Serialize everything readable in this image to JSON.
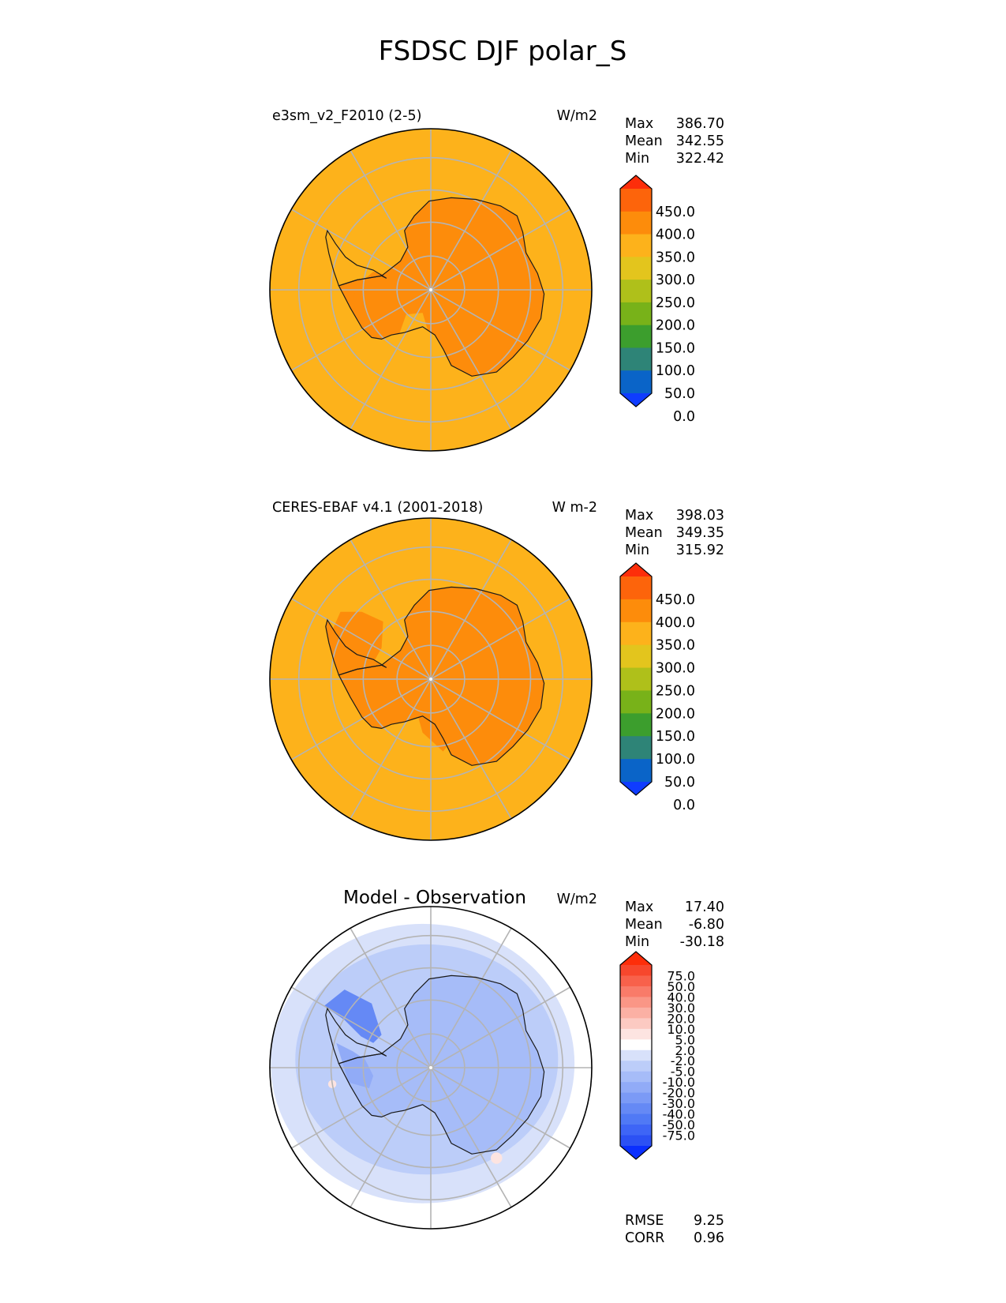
{
  "figure": {
    "title": "FSDSC DJF polar_S"
  },
  "colors": {
    "background": "#ffffff",
    "grid": "#b4b4b4",
    "coast": "#1a1a1a",
    "abs_levels": [
      "#0f3cff",
      "#0a64c8",
      "#2e8477",
      "#3c9e2d",
      "#78b219",
      "#afc01a",
      "#e3c51d",
      "#fdb21b",
      "#fd8c0b",
      "#fd640b",
      "#fd2e0a"
    ],
    "diff_levels": [
      "#0a2fff",
      "#2c51f4",
      "#3e65f6",
      "#5079f5",
      "#6589f5",
      "#7b9af6",
      "#91abf7",
      "#a6bcf8",
      "#bccdf9",
      "#d8e1fa",
      "#ffffff",
      "#fde4e1",
      "#fccac2",
      "#fbb0a4",
      "#fa9686",
      "#f97b69",
      "#f8614b",
      "#f7472d",
      "#fd2e0a"
    ]
  },
  "panels": [
    {
      "id": "test",
      "title_left": "e3sm_v2_F2010 (2-5)",
      "units": "W/m2",
      "stats": [
        {
          "label": "Max",
          "value": "386.70"
        },
        {
          "label": "Mean",
          "value": "342.55"
        },
        {
          "label": "Min",
          "value": "322.42"
        }
      ],
      "colorbar_labels": [
        "450.0",
        "400.0",
        "350.0",
        "300.0",
        "250.0",
        "200.0",
        "150.0",
        "100.0",
        "50.0",
        "0.0"
      ]
    },
    {
      "id": "ref",
      "title_left": "CERES-EBAF v4.1 (2001-2018)",
      "units": "W m-2",
      "stats": [
        {
          "label": "Max",
          "value": "398.03"
        },
        {
          "label": "Mean",
          "value": "349.35"
        },
        {
          "label": "Min",
          "value": "315.92"
        }
      ],
      "colorbar_labels": [
        "450.0",
        "400.0",
        "350.0",
        "300.0",
        "250.0",
        "200.0",
        "150.0",
        "100.0",
        "50.0",
        "0.0"
      ]
    },
    {
      "id": "diff",
      "title_center": "Model - Observation",
      "units": "W/m2",
      "stats": [
        {
          "label": "Max",
          "value": "17.40"
        },
        {
          "label": "Mean",
          "value": "-6.80"
        },
        {
          "label": "Min",
          "value": "-30.18"
        }
      ],
      "extra_stats": [
        {
          "label": "RMSE",
          "value": "9.25"
        },
        {
          "label": "CORR",
          "value": "0.96"
        }
      ],
      "colorbar_labels": [
        "75.0",
        "50.0",
        "40.0",
        "30.0",
        "20.0",
        "10.0",
        "5.0",
        "2.0",
        "-2.0",
        "-5.0",
        "-10.0",
        "-20.0",
        "-30.0",
        "-40.0",
        "-50.0",
        "-75.0"
      ]
    }
  ],
  "chart_data": [
    {
      "type": "heatmap",
      "projection": "south polar stereographic",
      "title": "e3sm_v2_F2010 (2-5)",
      "units": "W/m2",
      "levels": [
        0,
        50,
        100,
        150,
        200,
        250,
        300,
        350,
        400,
        450
      ],
      "colorbar_extend": "both",
      "stats": {
        "max": 386.7,
        "mean": 342.55,
        "min": 322.42
      },
      "fields": {
        "ocean": "300-350",
        "antarctica_interior": "350-400",
        "ross_weddell_ice_shelves": "300-350"
      }
    },
    {
      "type": "heatmap",
      "projection": "south polar stereographic",
      "title": "CERES-EBAF v4.1 (2001-2018)",
      "units": "W m-2",
      "levels": [
        0,
        50,
        100,
        150,
        200,
        250,
        300,
        350,
        400,
        450
      ],
      "colorbar_extend": "both",
      "stats": {
        "max": 398.03,
        "mean": 349.35,
        "min": 315.92
      },
      "fields": {
        "ocean": "300-350",
        "antarctica_interior": "350-400"
      }
    },
    {
      "type": "heatmap",
      "projection": "south polar stereographic",
      "title": "Model - Observation",
      "units": "W/m2",
      "levels": [
        -75,
        -50,
        -40,
        -30,
        -20,
        -10,
        -5,
        -2,
        2,
        5,
        10,
        20,
        30,
        40,
        50,
        75
      ],
      "colorbar_extend": "both",
      "stats": {
        "max": 17.4,
        "mean": -6.8,
        "min": -30.18,
        "rmse": 9.25,
        "corr": 0.96
      },
      "fields": {
        "outer_ring": "-2 to 2",
        "ocean_band": "-5 to -2",
        "near_coast": "-10 to -5",
        "antarctica": "-20 to -10",
        "peninsula": "-30 to -20"
      }
    }
  ]
}
